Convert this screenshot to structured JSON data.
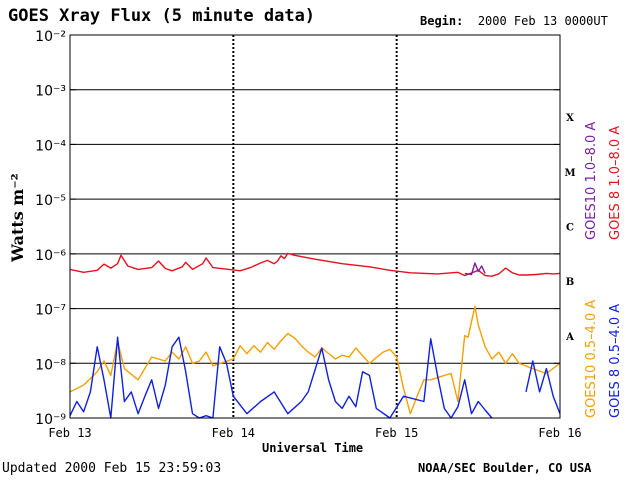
{
  "header": {
    "title": "GOES Xray Flux (5 minute data)",
    "begin_label": "Begin:",
    "begin_value": "2000 Feb 13 0000UT"
  },
  "footer": {
    "updated": "Updated 2000 Feb 15 23:59:03",
    "credit": "NOAA/SEC Boulder, CO USA"
  },
  "chart_data": {
    "type": "line",
    "title": "GOES Xray Flux (5 minute data)",
    "xlabel": "Universal Time",
    "ylabel": "Watts m⁻²",
    "yscale": "log",
    "ylim": [
      1e-09,
      0.01
    ],
    "xlim": [
      "2000-02-13 00:00",
      "2000-02-16 00:00"
    ],
    "x_ticks": [
      "Feb 13",
      "Feb 14",
      "Feb 15",
      "Feb 16"
    ],
    "y_ticks": [
      "10⁻²",
      "10⁻³",
      "10⁻⁴",
      "10⁻⁵",
      "10⁻⁶",
      "10⁻⁷",
      "10⁻⁸",
      "10⁻⁹"
    ],
    "flare_classes": [
      "X",
      "M",
      "C",
      "B",
      "A"
    ],
    "grid": true,
    "legend": [
      {
        "name": "GOES10 1.0–8.0 A",
        "color": "#7a1fa0"
      },
      {
        "name": "GOES 8 1.0–8.0 A",
        "color": "#e8101e"
      },
      {
        "name": "GOES10 0.5–4.0 A",
        "color": "#f5a000"
      },
      {
        "name": "GOES 8 0.5–4.0 A",
        "color": "#1020e0"
      }
    ],
    "series": [
      {
        "name": "GOES 8 1.0–8.0 A",
        "color": "#e8101e",
        "points": [
          [
            "2000-02-13 00:00",
            5.2e-07
          ],
          [
            "2000-02-13 02:00",
            4.6e-07
          ],
          [
            "2000-02-13 04:00",
            5e-07
          ],
          [
            "2000-02-13 05:00",
            6.5e-07
          ],
          [
            "2000-02-13 06:00",
            5.5e-07
          ],
          [
            "2000-02-13 07:00",
            6.6e-07
          ],
          [
            "2000-02-13 07:30",
            9.4e-07
          ],
          [
            "2000-02-13 08:30",
            6e-07
          ],
          [
            "2000-02-13 10:00",
            5.2e-07
          ],
          [
            "2000-02-13 12:00",
            5.6e-07
          ],
          [
            "2000-02-13 13:00",
            7.4e-07
          ],
          [
            "2000-02-13 14:00",
            5.4e-07
          ],
          [
            "2000-02-13 15:00",
            4.9e-07
          ],
          [
            "2000-02-13 16:30",
            5.8e-07
          ],
          [
            "2000-02-13 17:00",
            7e-07
          ],
          [
            "2000-02-13 18:00",
            5.2e-07
          ],
          [
            "2000-02-13 19:30",
            6.6e-07
          ],
          [
            "2000-02-13 20:00",
            8.4e-07
          ],
          [
            "2000-02-13 21:00",
            5.6e-07
          ],
          [
            "2000-02-14 00:00",
            5.1e-07
          ],
          [
            "2000-02-14 01:00",
            4.9e-07
          ],
          [
            "2000-02-14 02:30",
            5.6e-07
          ],
          [
            "2000-02-14 04:00",
            6.8e-07
          ],
          [
            "2000-02-14 05:00",
            7.6e-07
          ],
          [
            "2000-02-14 06:00",
            6.6e-07
          ],
          [
            "2000-02-14 06:30",
            7.4e-07
          ],
          [
            "2000-02-14 07:00",
            9.2e-07
          ],
          [
            "2000-02-14 07:30",
            8.2e-07
          ],
          [
            "2000-02-14 08:00",
            1.02e-06
          ],
          [
            "2000-02-14 09:00",
            9.4e-07
          ],
          [
            "2000-02-14 12:00",
            8e-07
          ],
          [
            "2000-02-14 16:00",
            6.6e-07
          ],
          [
            "2000-02-14 20:00",
            5.8e-07
          ],
          [
            "2000-02-14 23:00",
            5e-07
          ],
          [
            "2000-02-15 02:00",
            4.5e-07
          ],
          [
            "2000-02-15 06:00",
            4.3e-07
          ],
          [
            "2000-02-15 09:00",
            4.6e-07
          ],
          [
            "2000-02-15 10:00",
            4e-07
          ],
          [
            "2000-02-15 12:00",
            5e-07
          ],
          [
            "2000-02-15 13:00",
            4e-07
          ],
          [
            "2000-02-15 14:00",
            3.9e-07
          ],
          [
            "2000-02-15 15:00",
            4.3e-07
          ],
          [
            "2000-02-15 16:00",
            5.5e-07
          ],
          [
            "2000-02-15 17:00",
            4.5e-07
          ],
          [
            "2000-02-15 18:00",
            4.1e-07
          ],
          [
            "2000-02-15 19:00",
            4.1e-07
          ],
          [
            "2000-02-15 20:30",
            4.2e-07
          ],
          [
            "2000-02-15 22:00",
            4.4e-07
          ],
          [
            "2000-02-15 23:00",
            4.3e-07
          ],
          [
            "2000-02-16 00:00",
            4.4e-07
          ]
        ]
      },
      {
        "name": "GOES10 1.0–8.0 A",
        "color": "#7a1fa0",
        "points": [
          [
            "2000-02-15 10:00",
            4.4e-07
          ],
          [
            "2000-02-15 11:00",
            4.2e-07
          ],
          [
            "2000-02-15 11:30",
            6.8e-07
          ],
          [
            "2000-02-15 12:00",
            4.8e-07
          ],
          [
            "2000-02-15 12:30",
            6e-07
          ],
          [
            "2000-02-15 13:00",
            4.4e-07
          ]
        ]
      },
      {
        "name": "GOES10 0.5–4.0 A",
        "color": "#f5a000",
        "points": [
          [
            "2000-02-13 00:00",
            3e-09
          ],
          [
            "2000-02-13 02:00",
            4e-09
          ],
          [
            "2000-02-13 04:00",
            7e-09
          ],
          [
            "2000-02-13 05:00",
            1.1e-08
          ],
          [
            "2000-02-13 06:00",
            6e-09
          ],
          [
            "2000-02-13 07:00",
            2.5e-08
          ],
          [
            "2000-02-13 08:00",
            8e-09
          ],
          [
            "2000-02-13 10:00",
            5e-09
          ],
          [
            "2000-02-13 12:00",
            1.3e-08
          ],
          [
            "2000-02-13 14:00",
            1.1e-08
          ],
          [
            "2000-02-13 15:00",
            1.6e-08
          ],
          [
            "2000-02-13 16:00",
            1.2e-08
          ],
          [
            "2000-02-13 17:00",
            2e-08
          ],
          [
            "2000-02-13 18:00",
            1e-08
          ],
          [
            "2000-02-13 19:00",
            1.1e-08
          ],
          [
            "2000-02-13 20:00",
            1.6e-08
          ],
          [
            "2000-02-13 21:00",
            9e-09
          ],
          [
            "2000-02-14 00:00",
            1.2e-08
          ],
          [
            "2000-02-14 01:00",
            2.1e-08
          ],
          [
            "2000-02-14 02:00",
            1.5e-08
          ],
          [
            "2000-02-14 03:00",
            2.1e-08
          ],
          [
            "2000-02-14 04:00",
            1.6e-08
          ],
          [
            "2000-02-14 05:00",
            2.4e-08
          ],
          [
            "2000-02-14 06:00",
            1.8e-08
          ],
          [
            "2000-02-14 07:00",
            2.6e-08
          ],
          [
            "2000-02-14 08:00",
            3.5e-08
          ],
          [
            "2000-02-14 09:00",
            2.9e-08
          ],
          [
            "2000-02-14 10:00",
            2.1e-08
          ],
          [
            "2000-02-14 11:00",
            1.6e-08
          ],
          [
            "2000-02-14 12:00",
            1.3e-08
          ],
          [
            "2000-02-14 13:00",
            1.9e-08
          ],
          [
            "2000-02-14 15:00",
            1.2e-08
          ],
          [
            "2000-02-14 16:00",
            1.4e-08
          ],
          [
            "2000-02-14 17:00",
            1.3e-08
          ],
          [
            "2000-02-14 18:00",
            1.9e-08
          ],
          [
            "2000-02-14 20:00",
            1e-08
          ],
          [
            "2000-02-14 22:00",
            1.6e-08
          ],
          [
            "2000-02-14 23:00",
            1.8e-08
          ],
          [
            "2000-02-15 00:00",
            1.3e-08
          ],
          [
            "2000-02-15 01:00",
            3.5e-09
          ],
          [
            "2000-02-15 02:00",
            1.2e-09
          ],
          [
            "2000-02-15 03:00",
            2.5e-09
          ],
          [
            "2000-02-15 04:00",
            5e-09
          ],
          [
            "2000-02-15 05:00",
            5e-09
          ],
          [
            "2000-02-15 07:00",
            6e-09
          ],
          [
            "2000-02-15 08:00",
            6.5e-09
          ],
          [
            "2000-02-15 09:00",
            2e-09
          ],
          [
            "2000-02-15 10:00",
            3.2e-08
          ],
          [
            "2000-02-15 10:30",
            3e-08
          ],
          [
            "2000-02-15 11:30",
            1.1e-07
          ],
          [
            "2000-02-15 12:00",
            5e-08
          ],
          [
            "2000-02-15 13:00",
            2e-08
          ],
          [
            "2000-02-15 14:00",
            1.2e-08
          ],
          [
            "2000-02-15 15:00",
            1.6e-08
          ],
          [
            "2000-02-15 16:00",
            1e-08
          ],
          [
            "2000-02-15 17:00",
            1.5e-08
          ],
          [
            "2000-02-15 18:00",
            1e-08
          ],
          [
            "2000-02-15 20:00",
            8e-09
          ],
          [
            "2000-02-15 22:00",
            6.5e-09
          ],
          [
            "2000-02-16 00:00",
            1e-08
          ]
        ]
      },
      {
        "name": "GOES 8 0.5–4.0 A",
        "color": "#1020e0",
        "points": [
          [
            "2000-02-13 00:00",
            1.1e-09
          ],
          [
            "2000-02-13 01:00",
            2e-09
          ],
          [
            "2000-02-13 02:00",
            1.3e-09
          ],
          [
            "2000-02-13 03:00",
            3e-09
          ],
          [
            "2000-02-13 04:00",
            2e-08
          ],
          [
            "2000-02-13 05:00",
            5e-09
          ],
          [
            "2000-02-13 06:00",
            1e-09
          ],
          [
            "2000-02-13 07:00",
            3e-08
          ],
          [
            "2000-02-13 08:00",
            2e-09
          ],
          [
            "2000-02-13 09:00",
            3e-09
          ],
          [
            "2000-02-13 10:00",
            1.2e-09
          ],
          [
            "2000-02-13 11:00",
            2.5e-09
          ],
          [
            "2000-02-13 12:00",
            5e-09
          ],
          [
            "2000-02-13 13:00",
            1.5e-09
          ],
          [
            "2000-02-13 14:00",
            4e-09
          ],
          [
            "2000-02-13 15:00",
            2e-08
          ],
          [
            "2000-02-13 16:00",
            3e-08
          ],
          [
            "2000-02-13 17:00",
            7e-09
          ],
          [
            "2000-02-13 18:00",
            1.2e-09
          ],
          [
            "2000-02-13 19:00",
            1e-09
          ],
          [
            "2000-02-13 20:00",
            1.1e-09
          ],
          [
            "2000-02-13 21:00",
            1e-09
          ],
          [
            "2000-02-13 22:00",
            2e-08
          ],
          [
            "2000-02-13 23:00",
            1e-08
          ],
          [
            "2000-02-14 00:00",
            2.5e-09
          ],
          [
            "2000-02-14 02:00",
            1.2e-09
          ],
          [
            "2000-02-14 04:00",
            2e-09
          ],
          [
            "2000-02-14 06:00",
            3e-09
          ],
          [
            "2000-02-14 08:00",
            1.2e-09
          ],
          [
            "2000-02-14 10:00",
            2e-09
          ],
          [
            "2000-02-14 11:00",
            3e-09
          ],
          [
            "2000-02-14 13:00",
            1.9e-08
          ],
          [
            "2000-02-14 14:00",
            5e-09
          ],
          [
            "2000-02-14 15:00",
            2e-09
          ],
          [
            "2000-02-14 16:00",
            1.5e-09
          ],
          [
            "2000-02-14 17:00",
            2.5e-09
          ],
          [
            "2000-02-14 18:00",
            1.6e-09
          ],
          [
            "2000-02-14 19:00",
            7e-09
          ],
          [
            "2000-02-14 20:00",
            6e-09
          ],
          [
            "2000-02-14 21:00",
            1.5e-09
          ],
          [
            "2000-02-14 23:00",
            1e-09
          ],
          [
            "2000-02-15 01:00",
            2.5e-09
          ],
          [
            "2000-02-15 04:00",
            2e-09
          ],
          [
            "2000-02-15 05:00",
            2.8e-08
          ],
          [
            "2000-02-15 06:00",
            6e-09
          ],
          [
            "2000-02-15 07:00",
            1.5e-09
          ],
          [
            "2000-02-15 08:00",
            1e-09
          ],
          [
            "2000-02-15 09:00",
            1.6e-09
          ],
          [
            "2000-02-15 10:00",
            5e-09
          ],
          [
            "2000-02-15 11:00",
            1.2e-09
          ],
          [
            "2000-02-15 12:00",
            2e-09
          ],
          [
            "2000-02-15 13:00",
            1.4e-09
          ],
          [
            "2000-02-15 14:00",
            1e-09
          ]
        ]
      },
      {
        "name": "GOES 8 0.5–4.0 A",
        "color": "#1020e0",
        "points": [
          [
            "2000-02-15 19:00",
            3e-09
          ],
          [
            "2000-02-15 20:00",
            1.1e-08
          ],
          [
            "2000-02-15 21:00",
            3e-09
          ],
          [
            "2000-02-15 22:00",
            8e-09
          ],
          [
            "2000-02-15 23:00",
            2.5e-09
          ],
          [
            "2000-02-16 00:00",
            1.2e-09
          ]
        ]
      }
    ]
  }
}
